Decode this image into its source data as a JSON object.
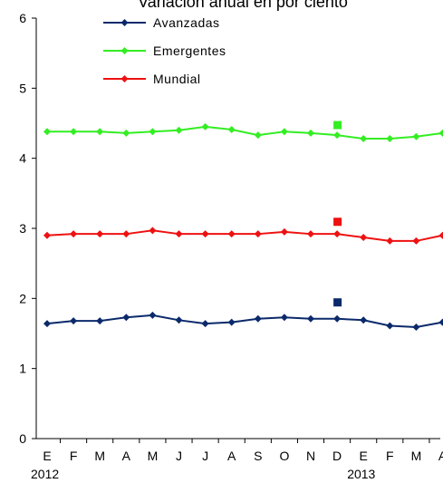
{
  "chart_data": {
    "type": "line",
    "title": "Variación anual en por ciento",
    "categories": [
      "E",
      "F",
      "M",
      "A",
      "M",
      "J",
      "J",
      "A",
      "S",
      "O",
      "N",
      "D",
      "E",
      "F",
      "M",
      "A"
    ],
    "year_labels": [
      {
        "label": "2012",
        "category_index": 0
      },
      {
        "label": "2013",
        "category_index": 12
      }
    ],
    "ylim": [
      0,
      6
    ],
    "yticks": [
      0,
      1,
      2,
      3,
      4,
      5,
      6
    ],
    "grid": false,
    "legend_placement": "top",
    "series": [
      {
        "name": "Avanzadas",
        "color": "#0B2A6B",
        "marker": "diamond",
        "values": [
          1.64,
          1.68,
          1.68,
          1.73,
          1.76,
          1.69,
          1.64,
          1.66,
          1.71,
          1.73,
          1.71,
          1.71,
          1.69,
          1.61,
          1.59,
          1.66
        ],
        "highlight": {
          "category_index": 11,
          "value": 1.95
        }
      },
      {
        "name": "Emergentes",
        "color": "#33EE22",
        "marker": "diamond",
        "values": [
          4.38,
          4.38,
          4.38,
          4.36,
          4.38,
          4.4,
          4.45,
          4.41,
          4.33,
          4.38,
          4.36,
          4.33,
          4.28,
          4.28,
          4.31,
          4.36
        ],
        "highlight": {
          "category_index": 11,
          "value": 4.48
        }
      },
      {
        "name": "Mundial",
        "color": "#EE1111",
        "marker": "diamond",
        "values": [
          2.9,
          2.92,
          2.92,
          2.92,
          2.97,
          2.92,
          2.92,
          2.92,
          2.92,
          2.95,
          2.92,
          2.92,
          2.87,
          2.82,
          2.82,
          2.9
        ],
        "highlight": {
          "category_index": 11,
          "value": 3.1
        }
      }
    ]
  }
}
